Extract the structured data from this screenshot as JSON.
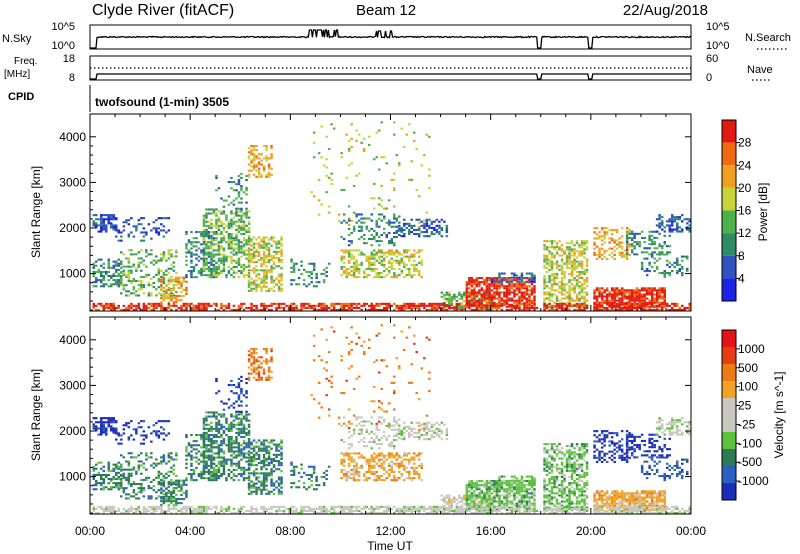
{
  "header": {
    "station": "Clyde River (fitACF)",
    "beam": "Beam 12",
    "date": "22/Aug/2018"
  },
  "status_panels": {
    "nsky_label": "N.Sky",
    "nsky_ticks": [
      "10^5",
      "10^0"
    ],
    "nsearch_label": "N.Search",
    "nsearch_ticks": [
      "10^5",
      "10^0"
    ],
    "freq_label": "Freq.",
    "freq_unit": "[MHz]",
    "freq_ticks": [
      "18",
      "8"
    ],
    "nave_label": "Nave",
    "nave_ticks": [
      "60",
      "0"
    ],
    "cpid_label": "CPID",
    "cpid_value": "twofsound (1-min) 3505"
  },
  "colors": {
    "power": [
      "#1e23e6",
      "#2f52bf",
      "#2f8a66",
      "#4fb04e",
      "#c8d23a",
      "#f0a020",
      "#ef6a10",
      "#e11a10"
    ],
    "velocity": [
      "#1c2db8",
      "#2c5fbf",
      "#2d7a55",
      "#5cc23d",
      "#c8c8c0",
      "#c8c8c0",
      "#f2a326",
      "#ee7a16",
      "#e43e10",
      "#e41414"
    ]
  },
  "chart_data": [
    {
      "type": "heatmap",
      "name": "power",
      "xlabel": "",
      "ylabel": "Slant Range [km]",
      "x_ticks": [
        "00:00",
        "04:00",
        "08:00",
        "12:00",
        "16:00",
        "20:00",
        "00:00"
      ],
      "xlim": [
        0,
        24
      ],
      "ylim": [
        180,
        4500
      ],
      "y_ticks": [
        "1000",
        "2000",
        "3000",
        "4000"
      ],
      "colorbar_label": "Power [dB]",
      "colorbar_ticks": [
        "4",
        "8",
        "12",
        "16",
        "20",
        "24",
        "28"
      ],
      "data_gaps_hours": [
        [
          17.85,
          18.0
        ],
        [
          19.9,
          20.05
        ]
      ]
    },
    {
      "type": "heatmap",
      "name": "velocity",
      "xlabel": "Time UT",
      "ylabel": "Slant Range [km]",
      "x_ticks": [
        "00:00",
        "04:00",
        "08:00",
        "12:00",
        "16:00",
        "20:00",
        "00:00"
      ],
      "xlim": [
        0,
        24
      ],
      "ylim": [
        180,
        4500
      ],
      "y_ticks": [
        "1000",
        "2000",
        "3000",
        "4000"
      ],
      "colorbar_label": "Velocity [m s^-1]",
      "colorbar_ticks": [
        "1000",
        "500",
        "100",
        "25",
        "-25",
        "-100",
        "-500",
        "-1000"
      ],
      "data_gaps_hours": [
        [
          17.85,
          18.0
        ],
        [
          19.9,
          20.05
        ]
      ]
    }
  ]
}
